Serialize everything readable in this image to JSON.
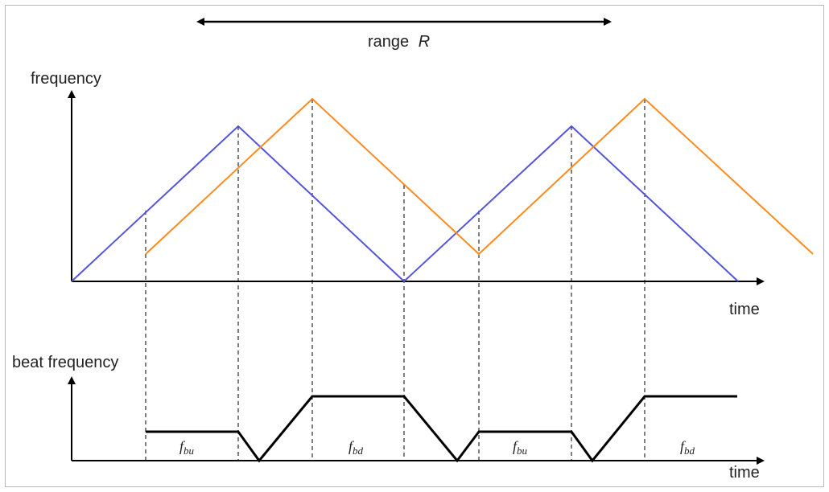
{
  "labels": {
    "range_text": "range",
    "range_symbol": "R",
    "top_ylabel": "frequency",
    "top_xlabel": "time",
    "bottom_ylabel": "beat frequency",
    "bottom_xlabel": "time",
    "fbu_main": "f",
    "fbu_sub": "bu",
    "fbd_main": "f",
    "fbd_sub": "bd"
  },
  "colors": {
    "transmitted": "#5555dd",
    "received": "#ff8a1e",
    "beat": "#000000",
    "axis": "#000000"
  }
}
